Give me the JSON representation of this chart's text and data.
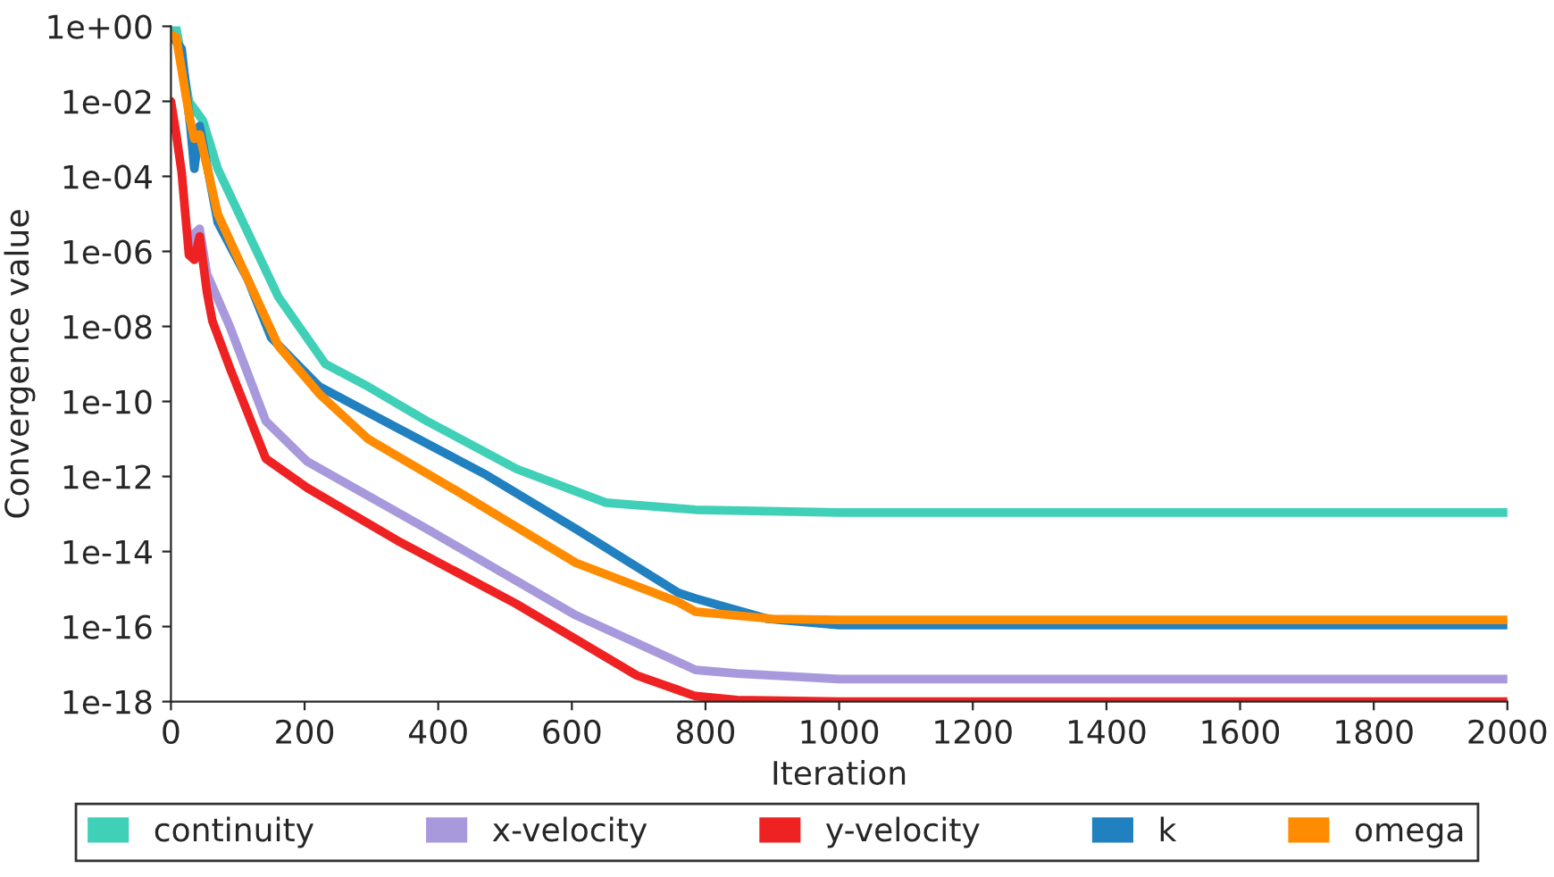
{
  "chart_data": {
    "type": "line",
    "xlabel": "Iteration",
    "ylabel": "Convergence value",
    "log": "y",
    "xlim": [
      0,
      2000
    ],
    "xticks": [
      0,
      200,
      400,
      600,
      800,
      1000,
      1200,
      1400,
      1600,
      1800,
      2000
    ],
    "ylim": [
      1e-18,
      1
    ],
    "yticks": [
      {
        "value": 1,
        "label": "1e+00"
      },
      {
        "value": 0.01,
        "label": "1e-02"
      },
      {
        "value": 0.0001,
        "label": "1e-04"
      },
      {
        "value": 1e-06,
        "label": "1e-06"
      },
      {
        "value": 1e-08,
        "label": "1e-08"
      },
      {
        "value": 1e-10,
        "label": "1e-10"
      },
      {
        "value": 1e-12,
        "label": "1e-12"
      },
      {
        "value": 1e-14,
        "label": "1e-14"
      },
      {
        "value": 1e-16,
        "label": "1e-16"
      },
      {
        "value": 1e-18,
        "label": "1e-18"
      }
    ],
    "grid": false,
    "legend": "bottom",
    "marker": "none",
    "line_style": "solid",
    "series": [
      {
        "name": "continuity",
        "color": "#40d0b8",
        "x": [
          0,
          8,
          27,
          48,
          70,
          123,
          161,
          231,
          295,
          383,
          517,
          651,
          785,
          1000,
          1500,
          2000
        ],
        "values": [
          1,
          0.9,
          0.01,
          0.003,
          0.00016,
          1.6e-06,
          6e-08,
          1e-09,
          2.5e-10,
          3e-11,
          1.6e-12,
          2e-13,
          1.3e-13,
          1.1e-13,
          1.1e-13,
          1.1e-13
        ]
      },
      {
        "name": "x-velocity",
        "color": "#a899dc",
        "x": [
          30,
          35,
          43,
          54,
          88,
          142,
          204,
          383,
          606,
          785,
          847,
          1000,
          1500,
          2000
        ],
        "values": [
          1.6e-06,
          3e-06,
          4e-06,
          2.5e-07,
          1e-08,
          3e-11,
          2.5e-12,
          4e-14,
          2e-16,
          7e-18,
          5.6e-18,
          4e-18,
          4e-18,
          4e-18
        ]
      },
      {
        "name": "y-velocity",
        "color": "#ee2222",
        "x": [
          0,
          8,
          16,
          27,
          35,
          43,
          54,
          62,
          88,
          142,
          204,
          338,
          517,
          697,
          785,
          847,
          1000,
          1500,
          2000
        ],
        "values": [
          0.01,
          0.0013,
          0.00013,
          8e-07,
          6e-07,
          2.5e-06,
          8e-08,
          1.4e-08,
          8e-10,
          3e-12,
          5e-13,
          2e-14,
          4e-16,
          5e-18,
          1.4e-18,
          1.1e-18,
          1e-18,
          1e-18,
          1e-18
        ]
      },
      {
        "name": "k",
        "color": "#2080c0",
        "x": [
          0,
          16,
          29,
          35,
          43,
          70,
          115,
          150,
          222,
          338,
          472,
          606,
          759,
          785,
          893,
          1000,
          1500,
          2000
        ],
        "values": [
          0.6,
          0.25,
          0.0022,
          0.00016,
          0.0022,
          6e-06,
          1.8e-07,
          5e-09,
          2.5e-10,
          2e-11,
          1.1e-12,
          4e-14,
          8e-16,
          5.6e-16,
          1.6e-16,
          1.1e-16,
          1.1e-16,
          1.1e-16
        ]
      },
      {
        "name": "omega",
        "color": "#ff8c00",
        "x": [
          0,
          8,
          27,
          35,
          43,
          70,
          115,
          161,
          222,
          295,
          429,
          606,
          759,
          785,
          900,
          1000,
          1500,
          2000
        ],
        "values": [
          0.6,
          0.5,
          0.0045,
          0.001,
          0.0013,
          1e-05,
          1.8e-07,
          3e-09,
          1.6e-10,
          1e-11,
          4e-13,
          5e-15,
          4.5e-16,
          2.5e-16,
          1.6e-16,
          1.5e-16,
          1.5e-16,
          1.5e-16
        ]
      }
    ]
  }
}
